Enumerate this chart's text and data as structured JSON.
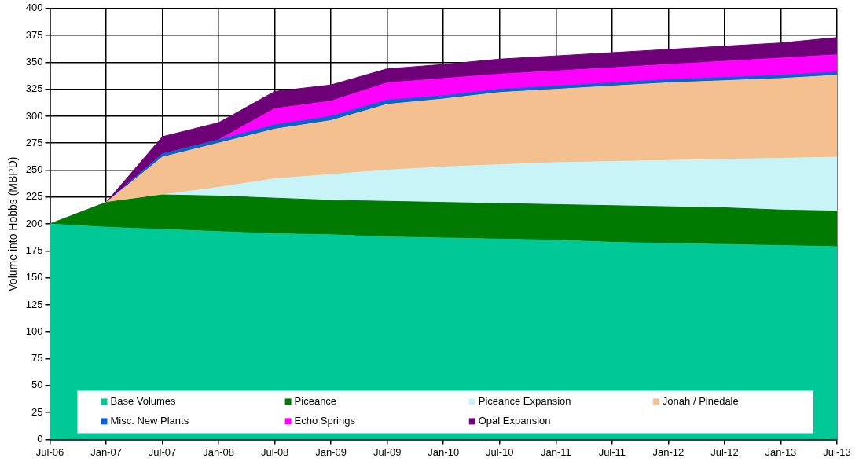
{
  "chart_data": {
    "type": "area",
    "stacked": true,
    "ylabel": "Volume into Hobbs (MBPD)",
    "categories": [
      "Jul-06",
      "Jan-07",
      "Jul-07",
      "Jan-08",
      "Jul-08",
      "Jan-09",
      "Jul-09",
      "Jan-10",
      "Jul-10",
      "Jan-11",
      "Jul-11",
      "Jan-12",
      "Jul-12",
      "Jan-13",
      "Jul-13"
    ],
    "series": [
      {
        "name": "Base Volumes",
        "color": "#00c896",
        "values": [
          200,
          197,
          195,
          193,
          191,
          190,
          188,
          187,
          186,
          185,
          183,
          182,
          181,
          180,
          179
        ]
      },
      {
        "name": "Piceance",
        "color": "#007a00",
        "values": [
          0,
          23,
          32,
          33,
          33,
          32,
          33,
          33,
          33,
          33,
          34,
          34,
          34,
          33,
          33
        ]
      },
      {
        "name": "Piceance Expansion",
        "color": "#c8f4f8",
        "values": [
          0,
          0,
          0,
          8,
          18,
          24,
          29,
          33,
          36,
          39,
          41,
          43,
          45,
          48,
          50
        ]
      },
      {
        "name": "Jonah / Pinedale",
        "color": "#f5c090",
        "values": [
          0,
          0,
          35,
          41,
          46,
          50,
          61,
          63,
          67,
          68,
          70,
          72,
          73,
          74,
          76
        ]
      },
      {
        "name": "Misc. New Plants",
        "color": "#0a64c8",
        "values": [
          0,
          0,
          3,
          3,
          4,
          4,
          4,
          3,
          3,
          3,
          3,
          3,
          3,
          3,
          3
        ]
      },
      {
        "name": "Echo Springs",
        "color": "#ff00ff",
        "values": [
          0,
          0,
          0,
          0,
          15,
          14,
          16,
          16,
          14,
          14,
          14,
          14,
          15,
          16,
          16
        ]
      },
      {
        "name": "Opal Expansion",
        "color": "#6e0078",
        "values": [
          0,
          0,
          16,
          16,
          16,
          15,
          13,
          13,
          14,
          14,
          14,
          14,
          14,
          14,
          16
        ]
      }
    ],
    "ylim": [
      0,
      400
    ],
    "yticks": [
      0,
      25,
      50,
      75,
      100,
      125,
      150,
      175,
      200,
      225,
      250,
      275,
      300,
      325,
      350,
      375,
      400
    ],
    "grid": true,
    "legend": "bottom"
  }
}
